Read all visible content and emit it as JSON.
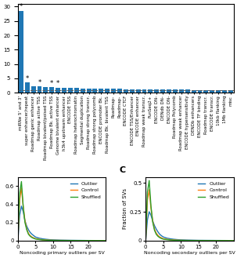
{
  "chart_data": [
    {
      "type": "bar",
      "categories": [
        "miRNe 5' and 3'",
        "super enhancer/repeat",
        "Roadmap genic enhancer",
        "Roadmap active TSS",
        "Roadmap bivalent/poised TSS",
        "Roadmap Bk. active TSS",
        "Genome bivalent enhancer",
        "h3k4 upstream enhancer",
        "ENCODE TSS",
        "Roadmap heterochromatin",
        "Segmental duplication",
        "Roadmap strong transcr.",
        "Roadmap strong polycomb",
        "ENCODE promoter Bk.",
        "Roadmap Bk. bivalent TSS",
        "Roadmap-",
        "Roadmap-",
        "ENCODE CTCF",
        "ENCODE TSS/Enhancer",
        "ENCODE enhancer",
        "Roadmap weak transcr.",
        "FunSeq2+",
        "ENCODE DN-",
        "DENdb DN-",
        "ENCODE DN-",
        "Roadmap Polycomb",
        "Roadmap weak enhancer",
        "ENCODE hypersensitivity",
        "DENDb enhancers",
        "ENCODE TF binding",
        "Roadmap transcr.",
        "ENCODE transcr.",
        "10kb flanking",
        "1Mb flanking",
        "misc"
      ],
      "values": [
        28.5,
        3.5,
        2.4,
        2.2,
        2.1,
        1.9,
        1.75,
        1.7,
        1.65,
        1.6,
        1.55,
        1.5,
        1.45,
        1.4,
        1.38,
        1.35,
        1.33,
        1.3,
        1.28,
        1.25,
        1.22,
        1.2,
        1.18,
        1.15,
        1.13,
        1.1,
        1.08,
        1.06,
        1.04,
        1.02,
        1.0,
        0.98,
        0.95,
        0.92,
        0.88
      ],
      "reference_line": 1.0,
      "annotations": [
        {
          "category": "miRNe 5' and 3'",
          "text": "*"
        },
        {
          "category": "super enhancer/repeat",
          "text": "*"
        },
        {
          "category": "Roadmap active TSS",
          "text": "*"
        },
        {
          "category": "Roadmap Bk. active TSS",
          "text": "*"
        },
        {
          "category": "Genome bivalent enhancer",
          "text": "*"
        }
      ],
      "ylim": [
        0,
        31
      ],
      "yticks": [
        0,
        5,
        10,
        15,
        20,
        25,
        30
      ]
    },
    {
      "type": "line",
      "x": [
        0.0,
        0.5,
        1.0,
        1.5,
        2.0,
        2.5,
        3.0,
        3.5,
        4.0,
        4.5,
        5.0,
        6.0,
        7.0,
        8.0,
        9.0,
        10.0,
        12.0,
        15.0,
        20.0,
        25.0
      ],
      "series": [
        {
          "name": "Outlier",
          "values": [
            0.0,
            0.28,
            0.38,
            0.32,
            0.22,
            0.16,
            0.12,
            0.09,
            0.07,
            0.055,
            0.04,
            0.028,
            0.02,
            0.015,
            0.011,
            0.009,
            0.006,
            0.004,
            0.002,
            0.001
          ]
        },
        {
          "name": "Control",
          "values": [
            0.0,
            0.45,
            0.58,
            0.38,
            0.22,
            0.13,
            0.08,
            0.055,
            0.04,
            0.03,
            0.022,
            0.015,
            0.01,
            0.007,
            0.005,
            0.004,
            0.003,
            0.002,
            0.001,
            0.0005
          ]
        },
        {
          "name": "Shuffled",
          "values": [
            0.0,
            0.52,
            0.65,
            0.38,
            0.2,
            0.12,
            0.07,
            0.048,
            0.034,
            0.025,
            0.018,
            0.012,
            0.008,
            0.006,
            0.004,
            0.003,
            0.002,
            0.0015,
            0.001,
            0.0004
          ]
        }
      ],
      "xlabel": "Noncoding primary outliers per SV",
      "xlim": [
        0,
        25
      ],
      "xticks": [
        0,
        5,
        10,
        15,
        20
      ],
      "ylim": [
        0,
        0.7
      ],
      "yticks": [
        0,
        0.2,
        0.4,
        0.6
      ],
      "legend": "upper right"
    },
    {
      "type": "line",
      "x": [
        0.0,
        0.5,
        1.0,
        1.5,
        2.0,
        2.5,
        3.0,
        3.5,
        4.0,
        4.5,
        5.0,
        6.0,
        7.0,
        8.0,
        9.0,
        10.0,
        12.0,
        15.0,
        20.0,
        25.0
      ],
      "series": [
        {
          "name": "Outlier",
          "values": [
            0.0,
            0.18,
            0.25,
            0.22,
            0.17,
            0.13,
            0.1,
            0.075,
            0.055,
            0.042,
            0.032,
            0.022,
            0.016,
            0.012,
            0.009,
            0.007,
            0.005,
            0.003,
            0.002,
            0.001
          ]
        },
        {
          "name": "Control",
          "values": [
            0.0,
            0.35,
            0.44,
            0.28,
            0.17,
            0.1,
            0.065,
            0.045,
            0.032,
            0.024,
            0.017,
            0.012,
            0.008,
            0.006,
            0.004,
            0.003,
            0.002,
            0.0015,
            0.001,
            0.0005
          ]
        },
        {
          "name": "Shuffled",
          "values": [
            0.0,
            0.42,
            0.52,
            0.3,
            0.16,
            0.09,
            0.055,
            0.037,
            0.026,
            0.018,
            0.013,
            0.009,
            0.006,
            0.004,
            0.003,
            0.0025,
            0.0015,
            0.001,
            0.0007,
            0.0003
          ]
        }
      ],
      "xlabel": "Noncoding secondary outliers per SV",
      "ylabel": "Fraction of SVs",
      "annotation": "C",
      "xlim": [
        0,
        25
      ],
      "xticks": [
        0,
        5,
        10,
        15,
        20
      ],
      "ylim": [
        0,
        0.55
      ],
      "yticks": [
        0,
        0.25,
        0.5
      ],
      "legend": "upper right"
    }
  ]
}
